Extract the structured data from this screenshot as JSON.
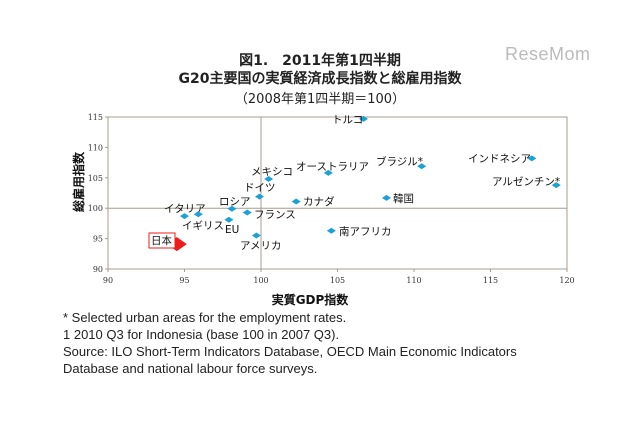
{
  "logo_text": "ReseMom",
  "chart_data": {
    "type": "scatter",
    "title_lines": [
      "図1.　2011年第1四半期",
      "G20主要国の実質経済成長指数と総雇用指数",
      "（2008年第1四半期＝100）"
    ],
    "xlabel": "実質GDP指数",
    "ylabel": "総雇用指数",
    "xlim": [
      90,
      120
    ],
    "ylim": [
      90,
      115
    ],
    "xticks": [
      90,
      95,
      100,
      105,
      110,
      115,
      120
    ],
    "yticks": [
      90,
      95,
      100,
      105,
      110,
      115
    ],
    "reference_lines": {
      "x": 100,
      "y": 100
    },
    "grid": false,
    "colors": {
      "point": "#1ba1d6",
      "highlight": "#ee1c1c",
      "axis": "#a89c8c"
    },
    "points": [
      {
        "label": "イタリア",
        "x": 95.0,
        "y": 98.7
      },
      {
        "label": "イギリス",
        "x": 95.9,
        "y": 99.0
      },
      {
        "label": "ロシア",
        "x": 98.1,
        "y": 99.9
      },
      {
        "label": "フランス",
        "x": 99.1,
        "y": 99.3
      },
      {
        "label": "EU",
        "x": 97.9,
        "y": 98.1
      },
      {
        "label": "ドイツ",
        "x": 99.9,
        "y": 101.9
      },
      {
        "label": "メキシコ",
        "x": 100.5,
        "y": 104.8
      },
      {
        "label": "カナダ",
        "x": 102.3,
        "y": 101.1
      },
      {
        "label": "アメリカ",
        "x": 99.7,
        "y": 95.5
      },
      {
        "label": "日本",
        "x": 94.5,
        "y": 94.1,
        "highlight": true
      },
      {
        "label": "オーストラリア",
        "x": 104.4,
        "y": 105.8
      },
      {
        "label": "トルコ",
        "x": 106.7,
        "y": 114.7
      },
      {
        "label": "ブラジル*",
        "x": 110.5,
        "y": 106.9
      },
      {
        "label": "韓国",
        "x": 108.2,
        "y": 101.7
      },
      {
        "label": "南アフリカ",
        "x": 104.6,
        "y": 96.3
      },
      {
        "label": "インドネシア",
        "x": 117.7,
        "y": 108.2
      },
      {
        "label": "アルゼンチン*",
        "x": 119.3,
        "y": 103.8
      }
    ]
  },
  "footnotes": [
    "* Selected urban areas for the employment rates.",
    "1 2010 Q3 for Indonesia (base 100 in 2007 Q3).",
    "Source: ILO Short-Term Indicators Database, OECD Main Economic Indicators",
    "Database and national labour force surveys."
  ]
}
